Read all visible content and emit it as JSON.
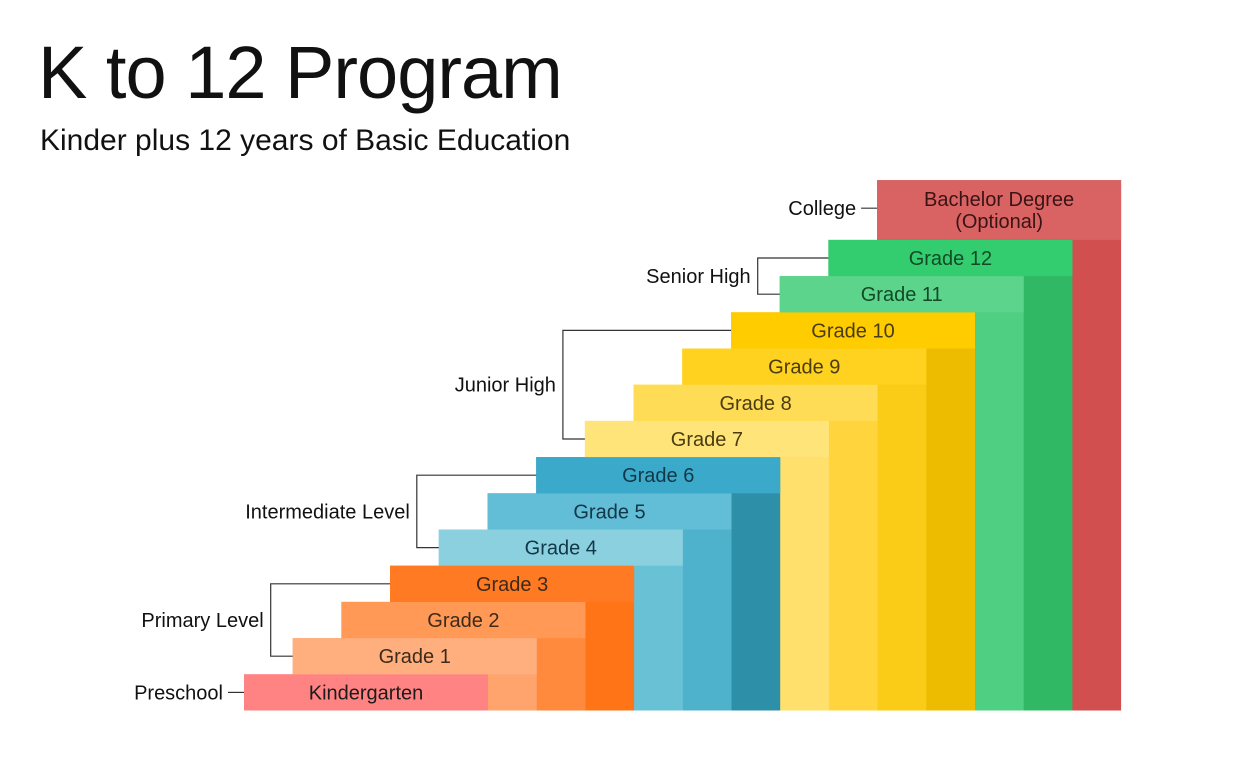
{
  "header": {
    "title": "K to 12 Program",
    "subtitle": "Kinder plus 12 years of Basic Education"
  },
  "steps": [
    {
      "label": "Kindergarten",
      "text_color": "#1b1b1b",
      "front_color": "#FF8383",
      "side_color": "#FF8383"
    },
    {
      "label": "Grade 1",
      "text_color": "#3d2a1a",
      "front_color": "#FFAF7E",
      "side_color": "#FFA46C"
    },
    {
      "label": "Grade 2",
      "text_color": "#3d2a1a",
      "front_color": "#FF9955",
      "side_color": "#FF8A3D"
    },
    {
      "label": "Grade 3",
      "text_color": "#3d2a1a",
      "front_color": "#FF7A22",
      "side_color": "#FF7417"
    },
    {
      "label": "Grade 4",
      "text_color": "#123848",
      "front_color": "#8BD0DF",
      "side_color": "#69C1D6"
    },
    {
      "label": "Grade 5",
      "text_color": "#123848",
      "front_color": "#62BDD6",
      "side_color": "#4FB2CC"
    },
    {
      "label": "Grade 6",
      "text_color": "#123848",
      "front_color": "#3BAACA",
      "side_color": "#2E90A8"
    },
    {
      "label": "Grade 7",
      "text_color": "#4a3c10",
      "front_color": "#FFE47A",
      "side_color": "#FFE06C"
    },
    {
      "label": "Grade 8",
      "text_color": "#4a3c10",
      "front_color": "#FFDC55",
      "side_color": "#FFD43D"
    },
    {
      "label": "Grade 9",
      "text_color": "#4a3c10",
      "front_color": "#FFD21F",
      "side_color": "#FACB17"
    },
    {
      "label": "Grade 10",
      "text_color": "#4a3c10",
      "front_color": "#FFCC00",
      "side_color": "#EDBB00"
    },
    {
      "label": "Grade 11",
      "text_color": "#124a28",
      "front_color": "#5DD48C",
      "side_color": "#4ECF81"
    },
    {
      "label": "Grade 12",
      "text_color": "#124a28",
      "front_color": "#33CC6E",
      "side_color": "#30B865"
    },
    {
      "label": "Bachelor Degree",
      "label_line2": "(Optional)",
      "text_color": "#3a1414",
      "front_color": "#D96262",
      "side_color": "#D14F4F"
    }
  ],
  "levels": [
    {
      "label": "Preschool",
      "from": 0,
      "to": 0
    },
    {
      "label": "Primary Level",
      "from": 1,
      "to": 3
    },
    {
      "label": "Intermediate Level",
      "from": 4,
      "to": 6
    },
    {
      "label": "Junior High",
      "from": 7,
      "to": 10
    },
    {
      "label": "Senior High",
      "from": 11,
      "to": 12
    },
    {
      "label": "College",
      "from": 13,
      "to": 13
    }
  ],
  "colors": {
    "connector": "#333333"
  }
}
